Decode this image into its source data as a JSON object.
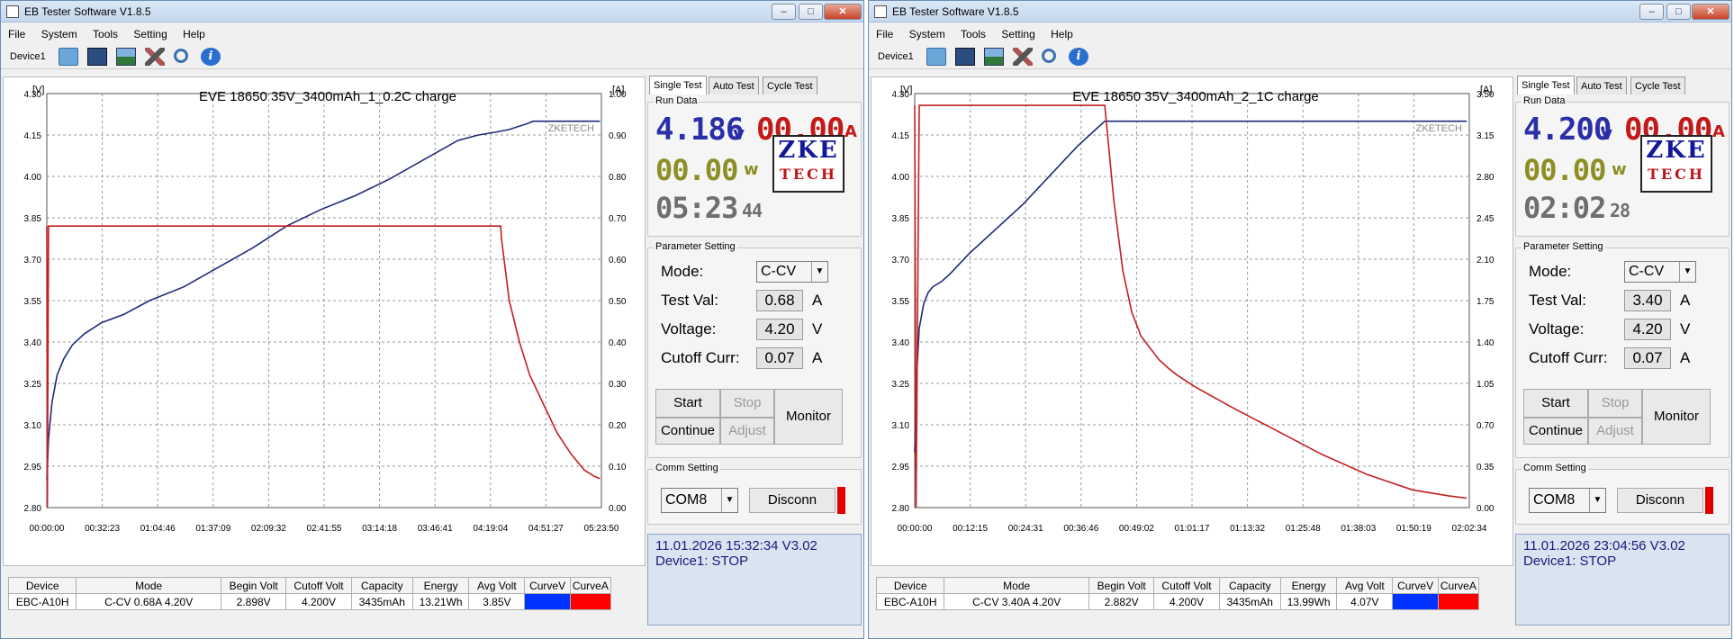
{
  "app": {
    "title": "EB Tester Software V1.8.5",
    "menu": [
      "File",
      "System",
      "Tools",
      "Setting",
      "Help"
    ],
    "device_tab": "Device1"
  },
  "colors": {
    "voltage_curve": "#1f2a7a",
    "current_curve": "#c21f1f",
    "lcd_blue": "#2b2fa6",
    "lcd_red": "#c41919",
    "lcd_olive": "#8e8e26",
    "lcd_gray": "#6e6e6e"
  },
  "table_headers": [
    "Device",
    "Mode",
    "Begin Volt",
    "Cutoff Volt",
    "Capacity",
    "Energy",
    "Avg Volt",
    "CurveV",
    "CurveA"
  ],
  "tabs": [
    "Single Test",
    "Auto Test",
    "Cycle Test"
  ],
  "labels": {
    "run_data": "Run Data",
    "parameter_setting": "Parameter Setting",
    "mode": "Mode:",
    "test_val": "Test Val:",
    "voltage": "Voltage:",
    "cutoff_curr": "Cutoff Curr:",
    "unit_a": "A",
    "unit_v": "V",
    "start": "Start",
    "stop": "Stop",
    "continue": "Continue",
    "adjust": "Adjust",
    "monitor": "Monitor",
    "comm_setting": "Comm Setting",
    "disconn": "Disconn",
    "lcd_v": "v",
    "lcd_a": "A",
    "lcd_w": "w",
    "logo_top": "ZKE",
    "logo_bottom": "TECH",
    "watermark": "ZKETECH"
  },
  "windows": [
    {
      "run": {
        "voltage": "4.186",
        "current": "00.00",
        "power": "00.00",
        "time": "05:23",
        "time_sec": "44"
      },
      "params": {
        "mode": "C-CV",
        "test_val": "0.68",
        "voltage": "4.20",
        "cutoff": "0.07"
      },
      "comm": {
        "port": "COM8"
      },
      "status": {
        "line1": "11.01.2026 15:32:34  V3.02",
        "line2": "Device1: STOP"
      },
      "table_row": [
        "EBC-A10H",
        "C-CV 0.68A 4.20V",
        "2.898V",
        "4.200V",
        "3435mAh",
        "13.21Wh",
        "3.85V"
      ],
      "chart_data": {
        "type": "line",
        "title": "EVE 18650 35V_3400mAh_1_0.2C charge",
        "y_left_unit": "[V]",
        "y_right_unit": "[A]",
        "y_left_ticks": [
          "4.30",
          "4.15",
          "4.00",
          "3.85",
          "3.70",
          "3.55",
          "3.40",
          "3.25",
          "3.10",
          "2.95",
          "2.80"
        ],
        "y_right_ticks": [
          "1.00",
          "0.90",
          "0.80",
          "0.70",
          "0.60",
          "0.50",
          "0.40",
          "0.30",
          "0.20",
          "0.10",
          "0.00"
        ],
        "x_ticks": [
          "00:00:00",
          "00:32:23",
          "01:04:46",
          "01:37:09",
          "02:09:32",
          "02:41:55",
          "03:14:18",
          "03:46:41",
          "04:19:04",
          "04:51:27",
          "05:23:50"
        ],
        "xlim_min": [
          0,
          323.83
        ],
        "ylim_left": [
          2.8,
          4.3
        ],
        "ylim_right": [
          0,
          1.0
        ],
        "grid": true,
        "series": [
          {
            "axis": "left",
            "x": [
              0,
              1,
              3,
              6,
              10,
              15,
              22,
              32,
              45,
              60,
              80,
              100,
              120,
              140,
              160,
              180,
              200,
              220,
              240,
              252,
              262,
              270,
              275,
              280,
              284,
              292,
              300,
              306,
              312,
              316,
              320,
              323
            ],
            "y": [
              2.9,
              3.05,
              3.18,
              3.28,
              3.34,
              3.39,
              3.43,
              3.47,
              3.5,
              3.55,
              3.6,
              3.67,
              3.74,
              3.82,
              3.88,
              3.93,
              3.99,
              4.06,
              4.13,
              4.15,
              4.16,
              4.17,
              4.18,
              4.19,
              4.2,
              4.2,
              4.2,
              4.2,
              4.2,
              4.2,
              4.2,
              4.2
            ]
          },
          {
            "axis": "right",
            "x": [
              0,
              0.3,
              1,
              50,
              100,
              150,
              200,
              250,
              265,
              265.5,
              270,
              276,
              282,
              290,
              298,
              306,
              314,
              320,
              323
            ],
            "y": [
              0.68,
              0.0,
              0.68,
              0.68,
              0.68,
              0.68,
              0.68,
              0.68,
              0.68,
              0.65,
              0.5,
              0.4,
              0.32,
              0.25,
              0.18,
              0.13,
              0.09,
              0.075,
              0.07
            ]
          }
        ]
      }
    },
    {
      "run": {
        "voltage": "4.200",
        "current": "00.00",
        "power": "00.00",
        "time": "02:02",
        "time_sec": "28"
      },
      "params": {
        "mode": "C-CV",
        "test_val": "3.40",
        "voltage": "4.20",
        "cutoff": "0.07"
      },
      "comm": {
        "port": "COM8"
      },
      "status": {
        "line1": "11.01.2026 23:04:56  V3.02",
        "line2": "Device1: STOP"
      },
      "table_row": [
        "EBC-A10H",
        "C-CV 3.40A 4.20V",
        "2.882V",
        "4.200V",
        "3435mAh",
        "13.99Wh",
        "4.07V"
      ],
      "chart_data": {
        "type": "line",
        "title": "EVE 18650 35V_3400mAh_2_1C charge",
        "y_left_unit": "[V]",
        "y_right_unit": "[A]",
        "y_left_ticks": [
          "4.30",
          "4.15",
          "4.00",
          "3.85",
          "3.70",
          "3.55",
          "3.40",
          "3.25",
          "3.10",
          "2.95",
          "2.80"
        ],
        "y_right_ticks": [
          "3.50",
          "3.15",
          "2.80",
          "2.45",
          "2.10",
          "1.75",
          "1.40",
          "1.05",
          "0.70",
          "0.35",
          "0.00"
        ],
        "x_ticks": [
          "00:00:00",
          "00:12:15",
          "00:24:31",
          "00:36:46",
          "00:49:02",
          "01:01:17",
          "01:13:32",
          "01:25:48",
          "01:38:03",
          "01:50:19",
          "02:02:34"
        ],
        "xlim_min": [
          0,
          122.57
        ],
        "ylim_left": [
          2.8,
          4.3
        ],
        "ylim_right": [
          0,
          3.5
        ],
        "grid": true,
        "series": [
          {
            "axis": "left",
            "x": [
              0,
              0.5,
              1,
              2,
              3,
              4,
              6,
              8,
              12,
              16,
              20,
              24,
              28,
              32,
              36,
              40,
              42,
              44,
              60,
              80,
              100,
              122
            ],
            "y": [
              3.0,
              3.3,
              3.45,
              3.54,
              3.58,
              3.6,
              3.62,
              3.65,
              3.72,
              3.78,
              3.84,
              3.9,
              3.97,
              4.04,
              4.11,
              4.17,
              4.2,
              4.2,
              4.2,
              4.2,
              4.2,
              4.2
            ]
          },
          {
            "axis": "right",
            "x": [
              0,
              0.3,
              1,
              20,
              42,
              42.5,
              44,
              46,
              48,
              50,
              52,
              54,
              56,
              58,
              62,
              70,
              80,
              90,
              100,
              110,
              118,
              122
            ],
            "y": [
              3.4,
              0.0,
              3.4,
              3.4,
              3.4,
              3.2,
              2.6,
              2.0,
              1.65,
              1.45,
              1.35,
              1.25,
              1.18,
              1.12,
              1.02,
              0.85,
              0.65,
              0.45,
              0.28,
              0.15,
              0.1,
              0.08
            ]
          }
        ]
      }
    }
  ]
}
